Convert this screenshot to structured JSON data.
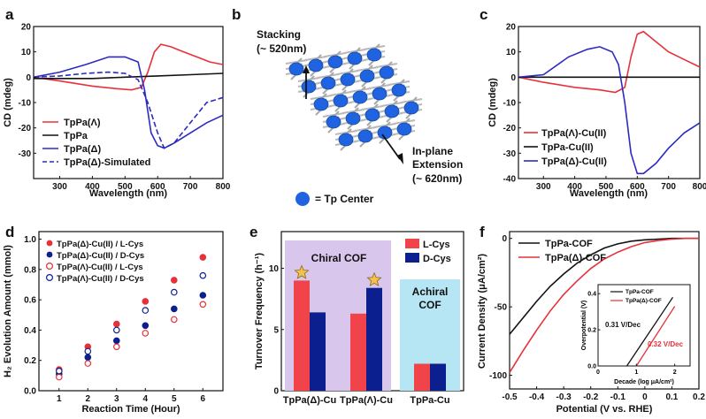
{
  "panels": {
    "a": "a",
    "b": "b",
    "c": "c",
    "d": "d",
    "e": "e",
    "f": "f"
  },
  "colors": {
    "red": "#e8303a",
    "black": "#111111",
    "blue": "#2b2bc0",
    "navy": "#0b1f8f",
    "lavender": "#d9c6ec",
    "lightblue": "#b6e6f3",
    "star": "#f2c14e",
    "node": "#1f63e0",
    "rod": "#b9b9b9"
  },
  "diagram_b": {
    "stacking_label": "Stacking",
    "stacking_value": "(~ 520nm)",
    "inplane_label_1": "In-plane",
    "inplane_label_2": "Extension",
    "inplane_value": "(~ 620nm)",
    "legend_text": "= Tp Center"
  },
  "chart_data": [
    {
      "id": "a",
      "type": "line",
      "xlabel": "Wavelength (nm)",
      "ylabel": "CD (mdeg)",
      "xlim": [
        220,
        800
      ],
      "ylim": [
        -40,
        20
      ],
      "xticks": [
        300,
        400,
        500,
        600,
        700,
        800
      ],
      "yticks": [
        -30,
        -20,
        -10,
        0,
        10,
        20
      ],
      "series": [
        {
          "name": "TpPa(Λ)",
          "color": "#e8303a",
          "dash": false,
          "x": [
            220,
            300,
            400,
            470,
            520,
            550,
            570,
            590,
            610,
            640,
            680,
            720,
            760,
            800
          ],
          "y": [
            0,
            -1.5,
            -3.5,
            -4.5,
            -5,
            -4,
            2,
            10,
            13,
            12,
            10,
            8,
            6,
            5
          ]
        },
        {
          "name": "TpPa",
          "color": "#111111",
          "dash": false,
          "x": [
            220,
            300,
            400,
            500,
            600,
            700,
            800
          ],
          "y": [
            -0.5,
            -0.5,
            -0.5,
            0,
            0.5,
            1,
            1.5
          ]
        },
        {
          "name": "TpPa(Δ)",
          "color": "#2b2bc0",
          "dash": false,
          "x": [
            220,
            300,
            380,
            450,
            500,
            540,
            560,
            580,
            600,
            620,
            650,
            700,
            750,
            800
          ],
          "y": [
            0,
            2,
            5,
            8,
            8,
            6,
            -5,
            -22,
            -27,
            -28,
            -26,
            -22,
            -18,
            -15
          ]
        },
        {
          "name": "TpPa(Δ)-Simulated",
          "color": "#2b2bc0",
          "dash": true,
          "x": [
            220,
            300,
            380,
            450,
            500,
            540,
            570,
            600,
            620,
            650,
            700,
            750,
            800
          ],
          "y": [
            0,
            0.5,
            1.5,
            2,
            1.5,
            -1,
            -10,
            -22,
            -28,
            -26,
            -18,
            -10,
            -8
          ]
        }
      ]
    },
    {
      "id": "c",
      "type": "line",
      "xlabel": "Wavelength (nm)",
      "ylabel": "CD (mdeg)",
      "xlim": [
        220,
        800
      ],
      "ylim": [
        -40,
        20
      ],
      "xticks": [
        300,
        400,
        500,
        600,
        700,
        800
      ],
      "yticks": [
        -40,
        -30,
        -20,
        -10,
        0,
        10,
        20
      ],
      "series": [
        {
          "name": "TpPa(Λ)-Cu(II)",
          "color": "#e8303a",
          "x": [
            220,
            300,
            400,
            480,
            530,
            560,
            580,
            600,
            620,
            660,
            700,
            750,
            800
          ],
          "y": [
            0,
            -2,
            -4,
            -5,
            -6,
            -4,
            8,
            17,
            18,
            14,
            10,
            7,
            4
          ]
        },
        {
          "name": "TpPa-Cu(II)",
          "color": "#111111",
          "x": [
            220,
            300,
            400,
            500,
            600,
            700,
            800
          ],
          "y": [
            0,
            0,
            0,
            0,
            0,
            0,
            0
          ]
        },
        {
          "name": "TpPa(Δ)-Cu(II)",
          "color": "#2b2bc0",
          "x": [
            220,
            300,
            380,
            440,
            480,
            520,
            540,
            560,
            580,
            600,
            620,
            660,
            700,
            750,
            800
          ],
          "y": [
            0,
            1,
            8,
            11,
            12,
            10,
            5,
            -10,
            -30,
            -38,
            -38,
            -34,
            -28,
            -22,
            -18
          ]
        }
      ]
    },
    {
      "id": "d",
      "type": "scatter",
      "xlabel": "Reaction Time (Hour)",
      "ylabel": "H₂ Evolution Amount (mmol)",
      "xlim": [
        0.3,
        6.7
      ],
      "ylim": [
        0,
        1.05
      ],
      "xticks": [
        1,
        2,
        3,
        4,
        5,
        6
      ],
      "yticks": [
        0.0,
        0.2,
        0.4,
        0.6,
        0.8,
        1.0
      ],
      "x": [
        1,
        2,
        3,
        4,
        5,
        6
      ],
      "series": [
        {
          "name": "TpPa(Δ)-Cu(II) / L-Cys",
          "color": "#e8303a",
          "filled": true,
          "values": [
            0.14,
            0.29,
            0.44,
            0.59,
            0.73,
            0.88
          ]
        },
        {
          "name": "TpPa(Δ)-Cu(II) / D-Cys",
          "color": "#0b1f8f",
          "filled": true,
          "values": [
            0.11,
            0.22,
            0.33,
            0.43,
            0.54,
            0.63
          ]
        },
        {
          "name": "TpPa(Λ)-Cu(II) / L-Cys",
          "color": "#e8303a",
          "filled": false,
          "values": [
            0.09,
            0.18,
            0.29,
            0.38,
            0.47,
            0.57
          ]
        },
        {
          "name": "TpPa(Λ)-Cu(II) / D-Cys",
          "color": "#0b1f8f",
          "filled": false,
          "values": [
            0.13,
            0.26,
            0.4,
            0.53,
            0.65,
            0.76
          ]
        }
      ]
    },
    {
      "id": "e",
      "type": "bar",
      "ylabel": "Turnover Frequency (h⁻¹)",
      "ylim": [
        0,
        13
      ],
      "yticks": [
        0,
        5,
        10
      ],
      "categories": [
        "TpPa(Δ)-Cu",
        "TpPa(Λ)-Cu",
        "TpPa-Cu"
      ],
      "series": [
        {
          "name": "L-Cys",
          "color": "#f0434a",
          "values": [
            9.0,
            6.3,
            2.2
          ]
        },
        {
          "name": "D-Cys",
          "color": "#0b1f8f",
          "values": [
            6.4,
            8.4,
            2.2
          ]
        }
      ],
      "region_labels": {
        "chiral": "Chiral COF",
        "achiral_1": "Achiral",
        "achiral_2": "COF"
      },
      "stars_on": [
        "TpPa(Δ)-Cu L-Cys",
        "TpPa(Λ)-Cu D-Cys"
      ]
    },
    {
      "id": "f",
      "type": "line",
      "xlabel": "Potential (V vs. RHE)",
      "ylabel": "Current Density (μA/cm²)",
      "xlim": [
        -0.5,
        0.2
      ],
      "ylim": [
        -110,
        5
      ],
      "xticks": [
        -0.5,
        -0.4,
        -0.3,
        -0.2,
        -0.1,
        0.0,
        0.1,
        0.2
      ],
      "yticks": [
        -100,
        -50,
        0
      ],
      "series": [
        {
          "name": "TpPa-COF",
          "color": "#111111",
          "x": [
            -0.5,
            -0.45,
            -0.4,
            -0.35,
            -0.3,
            -0.25,
            -0.2,
            -0.15,
            -0.1,
            -0.05,
            0.0,
            0.05,
            0.1,
            0.15,
            0.2
          ],
          "y": [
            -70,
            -58,
            -46,
            -35,
            -26,
            -18,
            -12,
            -7,
            -4,
            -2,
            -1,
            -0.5,
            0,
            0,
            0
          ]
        },
        {
          "name": "TpPa(Δ)-COF",
          "color": "#e8303a",
          "x": [
            -0.5,
            -0.45,
            -0.4,
            -0.35,
            -0.3,
            -0.25,
            -0.2,
            -0.15,
            -0.1,
            -0.05,
            0.0,
            0.05,
            0.1,
            0.15,
            0.2
          ],
          "y": [
            -98,
            -82,
            -67,
            -53,
            -41,
            -31,
            -22,
            -15,
            -10,
            -6,
            -3,
            -1.5,
            -0.5,
            0,
            0
          ]
        }
      ],
      "inset": {
        "xlabel": "Decade (log μA/cm²)",
        "ylabel": "Overpotential (V)",
        "xlim": [
          0,
          2.4
        ],
        "ylim": [
          0,
          0.45
        ],
        "xticks": [
          0,
          1,
          2
        ],
        "yticks": [
          0.0,
          0.2,
          0.4
        ],
        "series": [
          {
            "name": "TpPa-COF",
            "color": "#111111",
            "x": [
              0.75,
              1.95
            ],
            "y": [
              0.0,
              0.38
            ]
          },
          {
            "name": "TpPa(Δ)-COF",
            "color": "#e8303a",
            "x": [
              1.0,
              2.0
            ],
            "y": [
              0.0,
              0.33
            ]
          }
        ],
        "annotations": {
          "black": "0.31 V/Dec",
          "red": "0.32 V/Dec"
        }
      }
    }
  ]
}
